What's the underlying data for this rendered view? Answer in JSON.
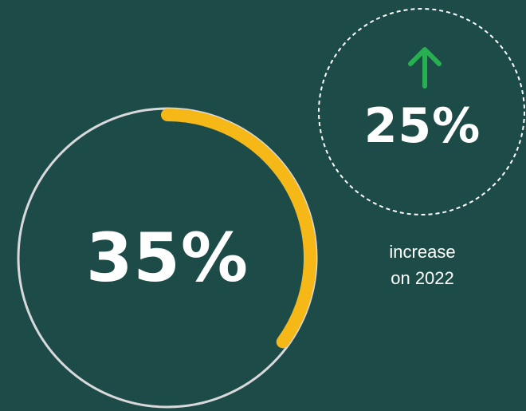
{
  "main_stat": {
    "value_text": "35%",
    "fraction": 0.35
  },
  "change_stat": {
    "value_text": "25%",
    "direction": "up",
    "icon": "arrow-up-icon"
  },
  "caption": {
    "line1": "increase",
    "line2": "on 2022"
  },
  "colors": {
    "background": "#1c4b48",
    "ring_track": "#d9d9dc",
    "ring_progress": "#f5b816",
    "arrow": "#27b04f",
    "dashed_circle": "#ffffff",
    "text": "#ffffff"
  }
}
